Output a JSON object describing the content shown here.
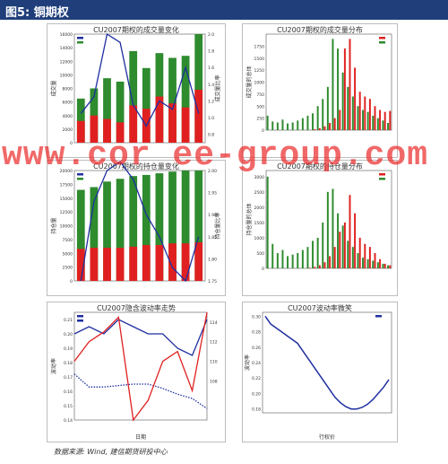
{
  "header": {
    "title": "图5: 铜期权"
  },
  "watermark": "www.cor ee-group.com",
  "source": "数据来源: Wind, 建信期货研投中心",
  "colors": {
    "green": "#2e8b2e",
    "red": "#e02020",
    "blue": "#1f2fa0",
    "header": "#1f3e7a"
  },
  "chart_data": [
    {
      "id": "volume-change",
      "type": "bar",
      "title": "CU2007期权的成交量变化",
      "ylabel": "成交量",
      "y2label": "成交量比率",
      "categories": [
        "",
        "",
        "",
        "",
        "",
        "",
        "",
        "",
        "",
        ""
      ],
      "series": [
        {
          "name": "",
          "color": "#2e8b2e",
          "values": [
            6500,
            8000,
            9500,
            9000,
            13500,
            11000,
            13200,
            12500,
            12800,
            16000
          ]
        },
        {
          "name": "",
          "color": "#e02020",
          "values": [
            3200,
            4000,
            3500,
            3000,
            5500,
            5000,
            6800,
            5800,
            5200,
            7800
          ]
        }
      ],
      "line": {
        "name": "",
        "values": [
          1.05,
          1.25,
          2.0,
          1.9,
          1.15,
          0.9,
          1.2,
          1.1,
          1.6,
          1.05
        ]
      },
      "ylim": [
        0,
        16000
      ],
      "y2lim": [
        0.7,
        2.0
      ],
      "yticks": [
        0,
        2000,
        4000,
        6000,
        8000,
        10000,
        12000,
        14000,
        16000
      ],
      "y2ticks": [
        "0.8",
        "1.0",
        "1.2",
        "1.4",
        "1.6",
        "1.8",
        "2.0"
      ],
      "legend": [
        "",
        "",
        ""
      ]
    },
    {
      "id": "volume-distribution",
      "type": "bar",
      "title": "CU2007期权的成交量分布",
      "ylabel": "成交量的总体",
      "categories": [
        "",
        "",
        "",
        "",
        "",
        "",
        "",
        "",
        "",
        "",
        "",
        "",
        "",
        "",
        "",
        "",
        "",
        "",
        "",
        "",
        "",
        "",
        "",
        "",
        ""
      ],
      "series": [
        {
          "name": "",
          "color": "#2e8b2e",
          "values": [
            300,
            180,
            160,
            220,
            140,
            160,
            200,
            250,
            300,
            350,
            500,
            650,
            900,
            1900,
            1700,
            1200,
            900,
            700,
            500,
            420,
            380,
            300,
            250,
            200,
            150
          ]
        },
        {
          "name": "",
          "color": "#e02020",
          "values": [
            0,
            0,
            0,
            0,
            0,
            0,
            0,
            0,
            0,
            20,
            40,
            80,
            150,
            250,
            420,
            1700,
            1900,
            1300,
            800,
            700,
            650,
            500,
            420,
            380,
            400
          ]
        }
      ],
      "ylim": [
        0,
        2000
      ],
      "yticks": [
        0,
        250,
        500,
        750,
        1000,
        1250,
        1500,
        1750
      ],
      "legend": [
        "",
        ""
      ]
    },
    {
      "id": "open-interest-change",
      "type": "bar",
      "title": "CU2007期权的持仓量变化",
      "ylabel": "持仓量",
      "y2label": "持仓量比率",
      "categories": [
        "",
        "",
        "",
        "",
        "",
        "",
        "",
        "",
        "",
        ""
      ],
      "series": [
        {
          "name": "",
          "color": "#2e8b2e",
          "values": [
            16500,
            17000,
            18000,
            18500,
            19000,
            19200,
            19500,
            19800,
            20000,
            20000
          ]
        },
        {
          "name": "",
          "color": "#e02020",
          "values": [
            5800,
            6000,
            6000,
            6000,
            6200,
            6500,
            6500,
            6800,
            6800,
            7000
          ]
        }
      ],
      "line": {
        "name": "",
        "values": [
          1.75,
          1.93,
          2.0,
          2.02,
          1.98,
          1.9,
          1.85,
          1.78,
          1.75,
          1.85
        ]
      },
      "ylim": [
        0,
        20000
      ],
      "y2lim": [
        1.75,
        2.0
      ],
      "yticks": [
        0,
        2500,
        5000,
        7500,
        10000,
        12500,
        15000,
        17500,
        20000
      ],
      "y2ticks": [
        "1.75",
        "1.80",
        "1.85",
        "1.90",
        "1.95",
        "2.00"
      ],
      "legend": [
        "",
        ""
      ]
    },
    {
      "id": "open-interest-distribution",
      "type": "bar",
      "title": "CU2007期权的持仓量分布",
      "ylabel": "持仓量的总体",
      "categories": [
        "",
        "",
        "",
        "",
        "",
        "",
        "",
        "",
        "",
        "",
        "",
        "",
        "",
        "",
        "",
        "",
        "",
        "",
        "",
        "",
        "",
        "",
        "",
        "",
        ""
      ],
      "series": [
        {
          "name": "",
          "color": "#2e8b2e",
          "values": [
            3000,
            800,
            500,
            600,
            400,
            450,
            500,
            600,
            700,
            900,
            1000,
            1500,
            2500,
            2600,
            1800,
            1400,
            900,
            700,
            500,
            350,
            300,
            250,
            200,
            150,
            100
          ]
        },
        {
          "name": "",
          "color": "#e02020",
          "values": [
            0,
            0,
            0,
            0,
            0,
            0,
            0,
            0,
            20,
            50,
            100,
            200,
            400,
            700,
            1200,
            1500,
            2400,
            1800,
            1000,
            800,
            700,
            500,
            300,
            150,
            100
          ]
        }
      ],
      "ylim": [
        0,
        3200
      ],
      "yticks": [
        0,
        500,
        1000,
        1500,
        2000,
        2500,
        3000
      ],
      "legend": [
        "",
        ""
      ]
    },
    {
      "id": "volatility-trend",
      "type": "line",
      "title": "CU2007隐含波动率走势",
      "xlabel": "日期",
      "ylabel": "波动率",
      "categories": [
        "",
        "",
        "",
        "",
        "",
        "",
        "",
        "",
        "",
        ""
      ],
      "series": [
        {
          "name": "",
          "color": "#1f2fa0",
          "style": "solid",
          "values": [
            0.2,
            0.205,
            0.2,
            0.21,
            0.205,
            0.2,
            0.2,
            0.19,
            0.185,
            0.21
          ]
        },
        {
          "name": "",
          "color": "#1f2fa0",
          "style": "dotted",
          "values": [
            0.172,
            0.163,
            0.163,
            0.164,
            0.165,
            0.165,
            0.162,
            0.158,
            0.155,
            0.148
          ]
        }
      ],
      "y2series": {
        "name": "",
        "color": "#e02020",
        "values": [
          110,
          112,
          113,
          114.5,
          104,
          106,
          110,
          111,
          107,
          115
        ]
      },
      "ylim": [
        0.14,
        0.215
      ],
      "y2lim": [
        104,
        115
      ],
      "yticks": [
        "0.14",
        "0.15",
        "0.16",
        "0.17",
        "0.18",
        "0.19",
        "0.20",
        "0.21"
      ],
      "y2ticks": [
        "108",
        "110",
        "112",
        "114"
      ],
      "legend": [
        "",
        ""
      ]
    },
    {
      "id": "volatility-smile",
      "type": "line",
      "title": "CU2007波动率微笑",
      "xlabel": "行权价",
      "ylabel": "波动率",
      "categories": [
        "",
        "",
        "",
        "",
        "",
        "",
        "",
        "",
        "",
        "",
        "",
        "",
        "",
        "",
        "",
        "",
        "",
        "",
        "",
        "",
        "",
        "",
        "",
        ""
      ],
      "series": [
        {
          "name": "",
          "color": "#1f2fa0",
          "values": [
            0.3,
            0.29,
            0.285,
            0.28,
            0.275,
            0.27,
            0.265,
            0.255,
            0.245,
            0.235,
            0.225,
            0.215,
            0.205,
            0.195,
            0.188,
            0.183,
            0.18,
            0.18,
            0.182,
            0.186,
            0.192,
            0.2,
            0.208,
            0.218
          ]
        }
      ],
      "ylim": [
        0.175,
        0.305
      ],
      "yticks": [
        "0.18",
        "0.20",
        "0.22",
        "0.24",
        "0.26",
        "0.28",
        "0.30"
      ],
      "legend": [
        ""
      ]
    }
  ]
}
